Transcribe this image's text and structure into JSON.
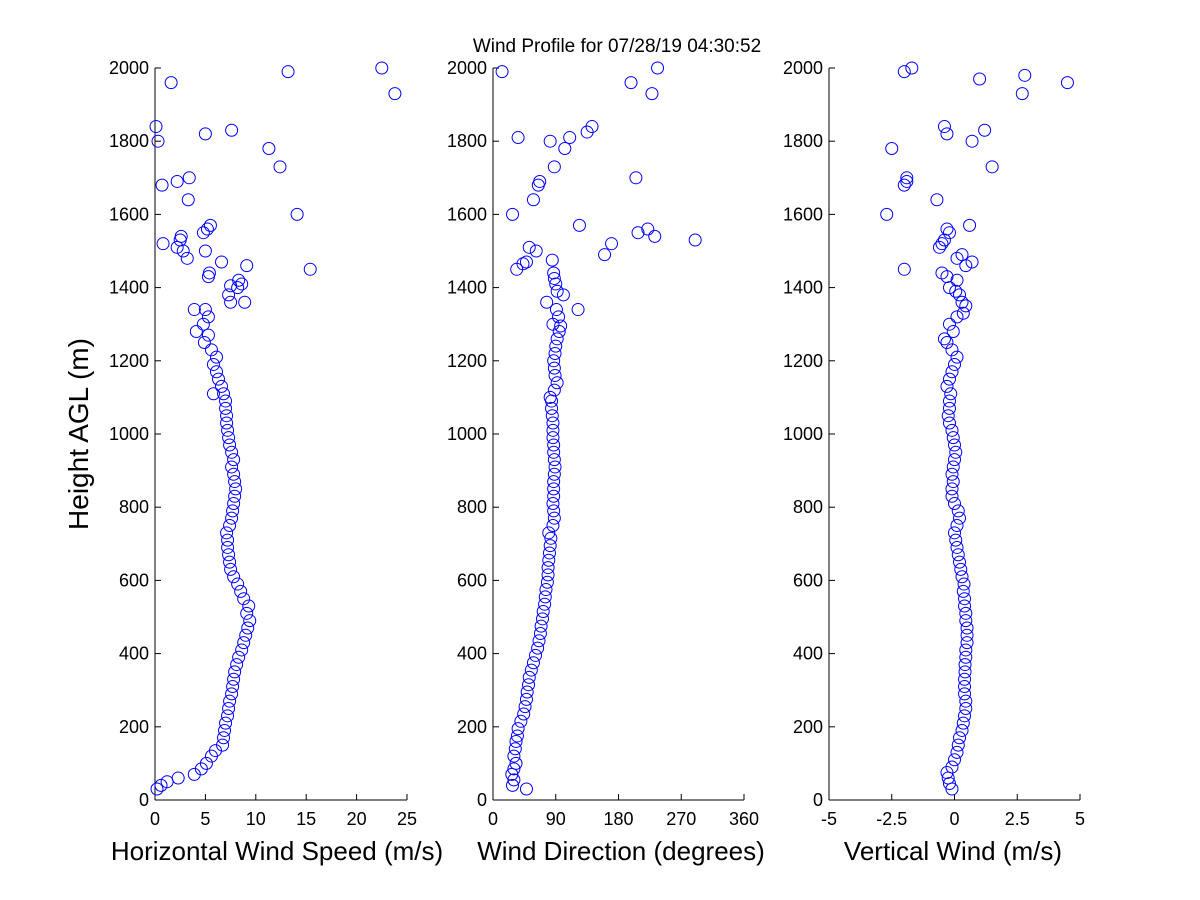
{
  "title": "Wind Profile for  07/28/19 04:30:52",
  "ylabel": "Height AGL (m)",
  "colors": {
    "marker": "#0000ff",
    "axis": "#000000",
    "background": "#ffffff"
  },
  "chart_data": [
    {
      "type": "scatter",
      "xlabel": "Horizontal Wind Speed (m/s)",
      "ylabel": "Height AGL (m)",
      "xlim": [
        0,
        25
      ],
      "ylim": [
        0,
        2000
      ],
      "xticks": [
        0,
        5,
        10,
        15,
        20,
        25
      ],
      "xtick_labels": [
        "0",
        "5",
        "10",
        "15",
        "20",
        "25"
      ],
      "yticks": [
        0,
        200,
        400,
        600,
        800,
        1000,
        1200,
        1400,
        1600,
        1800,
        2000
      ],
      "ytick_labels": [
        "0",
        "200",
        "400",
        "600",
        "800",
        "1000",
        "1200",
        "1400",
        "1600",
        "1800",
        "2000"
      ],
      "grid": false,
      "marker": "open-circle",
      "points": [
        [
          0.2,
          30
        ],
        [
          0.6,
          40
        ],
        [
          1.2,
          50
        ],
        [
          2.3,
          60
        ],
        [
          3.9,
          70
        ],
        [
          4.6,
          85
        ],
        [
          5.1,
          100
        ],
        [
          5.6,
          120
        ],
        [
          6.0,
          135
        ],
        [
          6.7,
          150
        ],
        [
          6.8,
          170
        ],
        [
          6.9,
          190
        ],
        [
          7.0,
          210
        ],
        [
          7.2,
          230
        ],
        [
          7.3,
          250
        ],
        [
          7.4,
          270
        ],
        [
          7.6,
          290
        ],
        [
          7.7,
          310
        ],
        [
          7.8,
          330
        ],
        [
          7.9,
          350
        ],
        [
          8.1,
          370
        ],
        [
          8.3,
          390
        ],
        [
          8.6,
          410
        ],
        [
          8.8,
          430
        ],
        [
          9.0,
          450
        ],
        [
          9.2,
          470
        ],
        [
          9.4,
          490
        ],
        [
          9.1,
          510
        ],
        [
          9.3,
          530
        ],
        [
          8.8,
          550
        ],
        [
          8.5,
          570
        ],
        [
          8.2,
          590
        ],
        [
          7.8,
          610
        ],
        [
          7.5,
          630
        ],
        [
          7.4,
          650
        ],
        [
          7.3,
          670
        ],
        [
          7.2,
          690
        ],
        [
          7.2,
          710
        ],
        [
          7.1,
          730
        ],
        [
          7.4,
          750
        ],
        [
          7.6,
          770
        ],
        [
          7.7,
          790
        ],
        [
          7.8,
          810
        ],
        [
          7.9,
          830
        ],
        [
          8.0,
          850
        ],
        [
          7.9,
          870
        ],
        [
          7.8,
          890
        ],
        [
          7.6,
          910
        ],
        [
          7.8,
          930
        ],
        [
          7.6,
          950
        ],
        [
          7.4,
          970
        ],
        [
          7.3,
          990
        ],
        [
          7.2,
          1010
        ],
        [
          7.1,
          1030
        ],
        [
          7.1,
          1050
        ],
        [
          7.0,
          1070
        ],
        [
          7.0,
          1090
        ],
        [
          6.8,
          1110
        ],
        [
          6.6,
          1130
        ],
        [
          6.3,
          1150
        ],
        [
          6.1,
          1170
        ],
        [
          5.8,
          1190
        ],
        [
          6.1,
          1210
        ],
        [
          5.6,
          1230
        ],
        [
          4.9,
          1250
        ],
        [
          5.3,
          1270
        ],
        [
          4.1,
          1280
        ],
        [
          4.8,
          1300
        ],
        [
          5.3,
          1320
        ],
        [
          5.0,
          1340
        ],
        [
          3.9,
          1340
        ],
        [
          7.5,
          1360
        ],
        [
          8.9,
          1360
        ],
        [
          7.3,
          1380
        ],
        [
          8.2,
          1400
        ],
        [
          7.5,
          1405
        ],
        [
          8.6,
          1410
        ],
        [
          8.3,
          1420
        ],
        [
          5.3,
          1430
        ],
        [
          5.4,
          1440
        ],
        [
          15.4,
          1450
        ],
        [
          9.1,
          1460
        ],
        [
          6.6,
          1470
        ],
        [
          3.2,
          1480
        ],
        [
          2.8,
          1500
        ],
        [
          5.0,
          1500
        ],
        [
          2.2,
          1510
        ],
        [
          0.8,
          1520
        ],
        [
          2.5,
          1530
        ],
        [
          2.6,
          1540
        ],
        [
          4.8,
          1550
        ],
        [
          5.2,
          1560
        ],
        [
          5.5,
          1570
        ],
        [
          14.1,
          1600
        ],
        [
          3.3,
          1640
        ],
        [
          2.2,
          1690
        ],
        [
          3.4,
          1700
        ],
        [
          0.7,
          1680
        ],
        [
          12.4,
          1730
        ],
        [
          11.3,
          1780
        ],
        [
          0.3,
          1800
        ],
        [
          5.0,
          1820
        ],
        [
          7.6,
          1830
        ],
        [
          0.1,
          1840
        ],
        [
          23.8,
          1930
        ],
        [
          1.6,
          1960
        ],
        [
          13.2,
          1990
        ],
        [
          22.5,
          2000
        ],
        [
          5.8,
          1110
        ]
      ]
    },
    {
      "type": "scatter",
      "xlabel": "Wind Direction (degrees)",
      "ylabel": "",
      "xlim": [
        0,
        360
      ],
      "ylim": [
        0,
        2000
      ],
      "xticks": [
        0,
        90,
        180,
        270,
        360
      ],
      "xtick_labels": [
        "0",
        "90",
        "180",
        "270",
        "360"
      ],
      "yticks": [
        0,
        200,
        400,
        600,
        800,
        1000,
        1200,
        1400,
        1600,
        1800,
        2000
      ],
      "ytick_labels": [
        "0",
        "200",
        "400",
        "600",
        "800",
        "1000",
        "1200",
        "1400",
        "1600",
        "1800",
        "2000"
      ],
      "grid": false,
      "marker": "open-circle",
      "points": [
        [
          48,
          30
        ],
        [
          28,
          40
        ],
        [
          30,
          55
        ],
        [
          27,
          70
        ],
        [
          30,
          85
        ],
        [
          33,
          100
        ],
        [
          30,
          120
        ],
        [
          32,
          140
        ],
        [
          33,
          160
        ],
        [
          35,
          175
        ],
        [
          36,
          195
        ],
        [
          40,
          215
        ],
        [
          44,
          235
        ],
        [
          46,
          255
        ],
        [
          48,
          275
        ],
        [
          49,
          295
        ],
        [
          51,
          315
        ],
        [
          52,
          335
        ],
        [
          55,
          355
        ],
        [
          58,
          375
        ],
        [
          61,
          395
        ],
        [
          64,
          415
        ],
        [
          66,
          435
        ],
        [
          68,
          455
        ],
        [
          69,
          475
        ],
        [
          71,
          495
        ],
        [
          72,
          515
        ],
        [
          74,
          535
        ],
        [
          75,
          555
        ],
        [
          76,
          575
        ],
        [
          78,
          595
        ],
        [
          79,
          615
        ],
        [
          79,
          635
        ],
        [
          80,
          655
        ],
        [
          81,
          675
        ],
        [
          82,
          695
        ],
        [
          83,
          715
        ],
        [
          80,
          730
        ],
        [
          86,
          750
        ],
        [
          88,
          770
        ],
        [
          87,
          790
        ],
        [
          86,
          810
        ],
        [
          87,
          830
        ],
        [
          87,
          850
        ],
        [
          87,
          870
        ],
        [
          88,
          890
        ],
        [
          89,
          910
        ],
        [
          88,
          930
        ],
        [
          87,
          950
        ],
        [
          87,
          970
        ],
        [
          86,
          990
        ],
        [
          86,
          1010
        ],
        [
          86,
          1030
        ],
        [
          85,
          1050
        ],
        [
          84,
          1070
        ],
        [
          84,
          1090
        ],
        [
          82,
          1100
        ],
        [
          88,
          1120
        ],
        [
          92,
          1140
        ],
        [
          89,
          1160
        ],
        [
          88,
          1180
        ],
        [
          87,
          1200
        ],
        [
          89,
          1220
        ],
        [
          90,
          1240
        ],
        [
          92,
          1260
        ],
        [
          95,
          1280
        ],
        [
          97,
          1295
        ],
        [
          86,
          1300
        ],
        [
          94,
          1320
        ],
        [
          91,
          1340
        ],
        [
          122,
          1340
        ],
        [
          77,
          1360
        ],
        [
          101,
          1380
        ],
        [
          92,
          1390
        ],
        [
          90,
          1410
        ],
        [
          88,
          1425
        ],
        [
          87,
          1440
        ],
        [
          85,
          1475
        ],
        [
          34,
          1450
        ],
        [
          43,
          1465
        ],
        [
          48,
          1470
        ],
        [
          160,
          1490
        ],
        [
          62,
          1500
        ],
        [
          52,
          1510
        ],
        [
          290,
          1530
        ],
        [
          232,
          1540
        ],
        [
          208,
          1550
        ],
        [
          222,
          1560
        ],
        [
          124,
          1570
        ],
        [
          170,
          1520
        ],
        [
          28,
          1600
        ],
        [
          58,
          1640
        ],
        [
          65,
          1680
        ],
        [
          67,
          1690
        ],
        [
          205,
          1700
        ],
        [
          88,
          1730
        ],
        [
          82,
          1800
        ],
        [
          103,
          1780
        ],
        [
          110,
          1810
        ],
        [
          36,
          1810
        ],
        [
          135,
          1825
        ],
        [
          142,
          1840
        ],
        [
          198,
          1960
        ],
        [
          228,
          1930
        ],
        [
          236,
          2000
        ],
        [
          13,
          1990
        ]
      ]
    },
    {
      "type": "scatter",
      "xlabel": "Vertical Wind (m/s)",
      "ylabel": "",
      "xlim": [
        -5,
        5
      ],
      "ylim": [
        0,
        2000
      ],
      "xticks": [
        -5,
        -2.5,
        0,
        2.5,
        5
      ],
      "xtick_labels": [
        "-5",
        "-2.5",
        "0",
        "2.5",
        "5"
      ],
      "yticks": [
        0,
        200,
        400,
        600,
        800,
        1000,
        1200,
        1400,
        1600,
        1800,
        2000
      ],
      "ytick_labels": [
        "0",
        "200",
        "400",
        "600",
        "800",
        "1000",
        "1200",
        "1400",
        "1600",
        "1800",
        "2000"
      ],
      "grid": false,
      "marker": "open-circle",
      "points": [
        [
          -0.1,
          30
        ],
        [
          -0.2,
          45
        ],
        [
          -0.25,
          60
        ],
        [
          -0.3,
          75
        ],
        [
          -0.1,
          90
        ],
        [
          0.0,
          110
        ],
        [
          0.1,
          130
        ],
        [
          0.15,
          150
        ],
        [
          0.2,
          170
        ],
        [
          0.3,
          190
        ],
        [
          0.35,
          210
        ],
        [
          0.4,
          230
        ],
        [
          0.45,
          250
        ],
        [
          0.45,
          270
        ],
        [
          0.4,
          290
        ],
        [
          0.4,
          310
        ],
        [
          0.4,
          330
        ],
        [
          0.42,
          350
        ],
        [
          0.42,
          370
        ],
        [
          0.45,
          390
        ],
        [
          0.45,
          410
        ],
        [
          0.5,
          430
        ],
        [
          0.5,
          450
        ],
        [
          0.5,
          470
        ],
        [
          0.45,
          490
        ],
        [
          0.45,
          510
        ],
        [
          0.4,
          530
        ],
        [
          0.4,
          550
        ],
        [
          0.35,
          570
        ],
        [
          0.38,
          590
        ],
        [
          0.3,
          610
        ],
        [
          0.25,
          630
        ],
        [
          0.2,
          650
        ],
        [
          0.15,
          670
        ],
        [
          0.1,
          690
        ],
        [
          0.05,
          710
        ],
        [
          0.0,
          730
        ],
        [
          0.1,
          750
        ],
        [
          0.2,
          770
        ],
        [
          0.15,
          790
        ],
        [
          0.0,
          810
        ],
        [
          -0.1,
          830
        ],
        [
          -0.1,
          850
        ],
        [
          -0.05,
          870
        ],
        [
          -0.1,
          890
        ],
        [
          -0.05,
          910
        ],
        [
          0.0,
          930
        ],
        [
          0.05,
          950
        ],
        [
          0.0,
          970
        ],
        [
          -0.05,
          990
        ],
        [
          -0.1,
          1010
        ],
        [
          -0.2,
          1030
        ],
        [
          -0.25,
          1050
        ],
        [
          -0.2,
          1070
        ],
        [
          -0.2,
          1090
        ],
        [
          -0.15,
          1110
        ],
        [
          -0.3,
          1130
        ],
        [
          -0.2,
          1150
        ],
        [
          -0.1,
          1170
        ],
        [
          0.0,
          1190
        ],
        [
          0.1,
          1210
        ],
        [
          -0.1,
          1230
        ],
        [
          -0.3,
          1250
        ],
        [
          -0.4,
          1260
        ],
        [
          -0.05,
          1280
        ],
        [
          -0.2,
          1300
        ],
        [
          0.1,
          1320
        ],
        [
          0.35,
          1330
        ],
        [
          0.45,
          1350
        ],
        [
          0.3,
          1360
        ],
        [
          0.2,
          1380
        ],
        [
          0.05,
          1390
        ],
        [
          -0.2,
          1400
        ],
        [
          0.1,
          1420
        ],
        [
          -0.5,
          1440
        ],
        [
          -0.3,
          1430
        ],
        [
          0.45,
          1460
        ],
        [
          0.7,
          1470
        ],
        [
          -2.0,
          1450
        ],
        [
          0.3,
          1490
        ],
        [
          0.1,
          1480
        ],
        [
          -0.6,
          1510
        ],
        [
          -0.5,
          1520
        ],
        [
          -0.4,
          1530
        ],
        [
          -0.2,
          1550
        ],
        [
          -0.3,
          1560
        ],
        [
          0.6,
          1570
        ],
        [
          -2.7,
          1600
        ],
        [
          -0.7,
          1640
        ],
        [
          -2.0,
          1680
        ],
        [
          -1.9,
          1690
        ],
        [
          -1.9,
          1700
        ],
        [
          1.5,
          1730
        ],
        [
          -2.5,
          1780
        ],
        [
          0.7,
          1800
        ],
        [
          -0.3,
          1820
        ],
        [
          1.2,
          1830
        ],
        [
          -0.4,
          1840
        ],
        [
          2.7,
          1930
        ],
        [
          4.5,
          1960
        ],
        [
          1.0,
          1970
        ],
        [
          2.8,
          1980
        ],
        [
          -2.0,
          1990
        ],
        [
          -1.7,
          2000
        ]
      ]
    }
  ]
}
